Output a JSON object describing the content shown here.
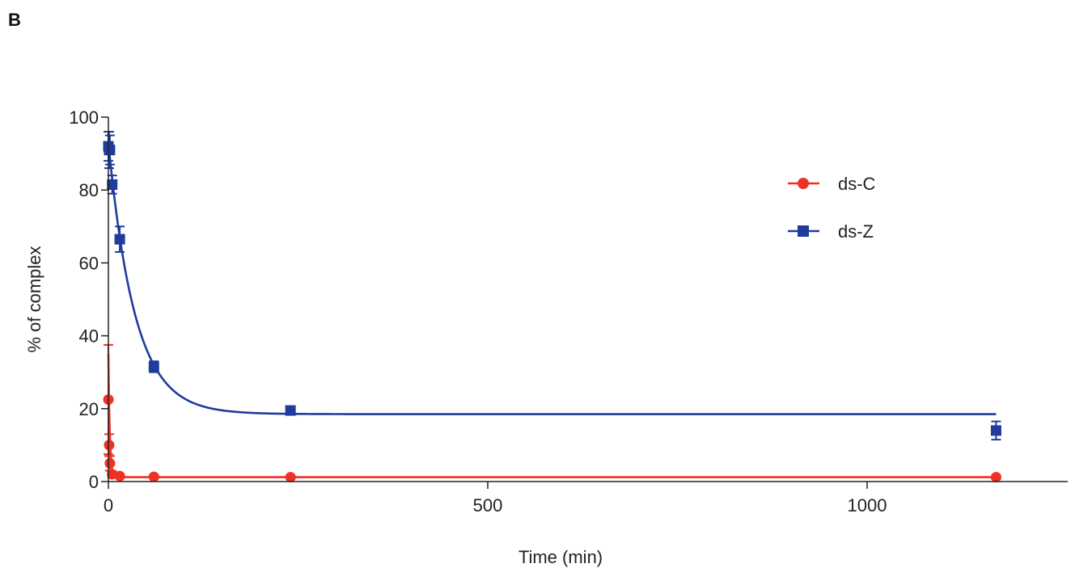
{
  "figure": {
    "panel_label": "B"
  },
  "chart_data": {
    "type": "scatter",
    "xlabel": "Time (min)",
    "ylabel": "% of complex",
    "xlim": [
      0,
      1270
    ],
    "ylim": [
      0,
      100
    ],
    "x_ticks": [
      0,
      500,
      1000
    ],
    "y_ticks": [
      0,
      20,
      40,
      60,
      80,
      100
    ],
    "legend_position": "upper-right",
    "series": [
      {
        "name": "ds-C",
        "color": "#ee3124",
        "marker": "circle",
        "x": [
          0,
          1,
          2,
          5,
          15,
          60,
          240,
          1170
        ],
        "y": [
          22.5,
          10,
          5,
          2,
          1.5,
          1.3,
          1.2,
          1.2
        ],
        "error": [
          15,
          3,
          2,
          0.8,
          0.5,
          0.5,
          0.5,
          0.5
        ],
        "fit": {
          "model": "one-phase-decay",
          "y0": 35,
          "plateau": 1.2,
          "k": 0.55
        }
      },
      {
        "name": "ds-Z",
        "color": "#1f3b9e",
        "marker": "square",
        "x": [
          0,
          1,
          2,
          5,
          15,
          60,
          240,
          1170
        ],
        "y": [
          92,
          91,
          91,
          81.5,
          66.5,
          31.5,
          19.5,
          14
        ],
        "error": [
          4,
          5,
          4,
          2.5,
          3.5,
          1.5,
          0.8,
          2.5
        ],
        "fit": {
          "model": "one-phase-decay",
          "y0": 93,
          "plateau": 18.5,
          "k": 0.0285
        }
      }
    ]
  }
}
